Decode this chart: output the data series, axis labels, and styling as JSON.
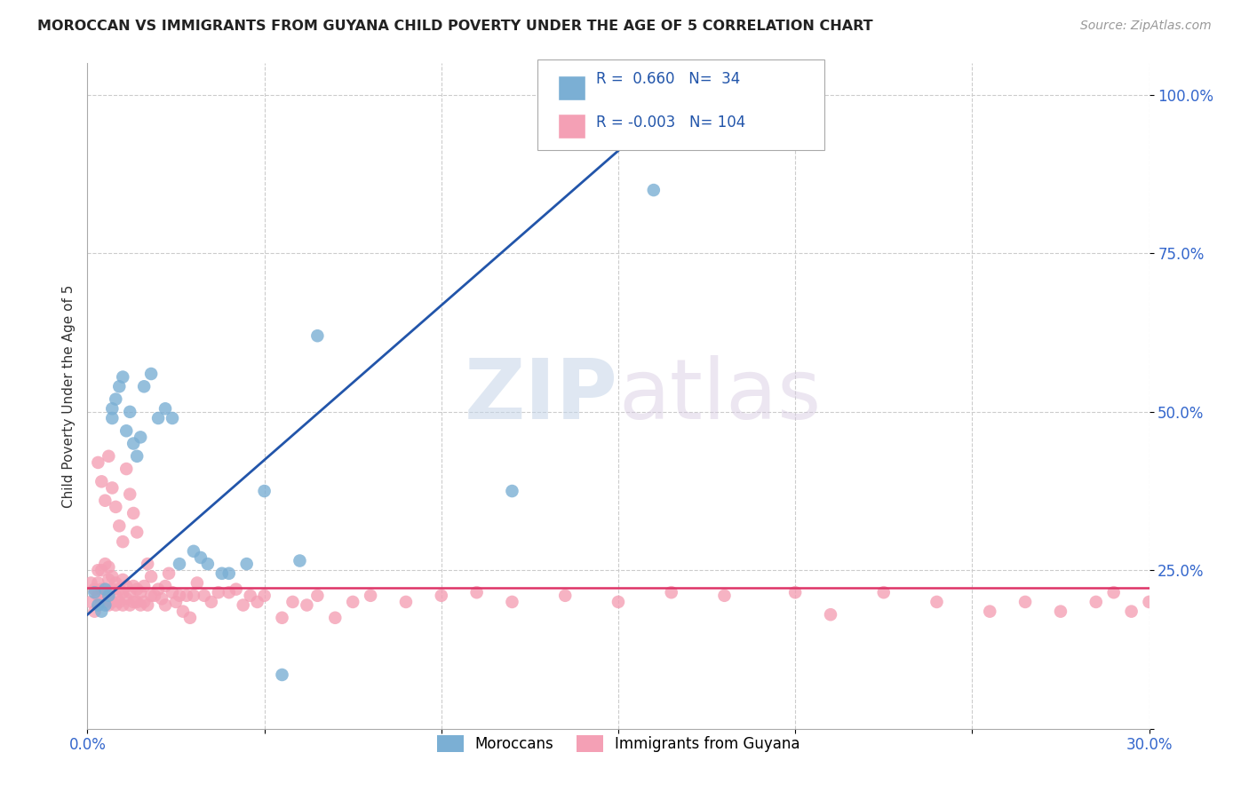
{
  "title": "MOROCCAN VS IMMIGRANTS FROM GUYANA CHILD POVERTY UNDER THE AGE OF 5 CORRELATION CHART",
  "source": "Source: ZipAtlas.com",
  "ylabel": "Child Poverty Under the Age of 5",
  "xlim": [
    0.0,
    0.3
  ],
  "ylim": [
    0.0,
    1.05
  ],
  "xticks": [
    0.0,
    0.05,
    0.1,
    0.15,
    0.2,
    0.25,
    0.3
  ],
  "xtick_labels": [
    "0.0%",
    "",
    "",
    "",
    "",
    "",
    "30.0%"
  ],
  "yticks": [
    0.0,
    0.25,
    0.5,
    0.75,
    1.0
  ],
  "ytick_labels": [
    "",
    "25.0%",
    "50.0%",
    "75.0%",
    "100.0%"
  ],
  "R_moroccan": 0.66,
  "N_moroccan": 34,
  "R_guyana": -0.003,
  "N_guyana": 104,
  "moroccan_color": "#7bafd4",
  "guyana_color": "#f4a0b5",
  "trend_moroccan_color": "#2255aa",
  "trend_guyana_color": "#dd3366",
  "watermark_zip": "ZIP",
  "watermark_atlas": "atlas",
  "legend_label_moroccan": "Moroccans",
  "legend_label_guyana": "Immigrants from Guyana",
  "moroccan_x": [
    0.002,
    0.003,
    0.004,
    0.005,
    0.005,
    0.006,
    0.007,
    0.007,
    0.008,
    0.009,
    0.01,
    0.011,
    0.012,
    0.013,
    0.014,
    0.015,
    0.016,
    0.018,
    0.02,
    0.022,
    0.024,
    0.026,
    0.03,
    0.032,
    0.034,
    0.038,
    0.04,
    0.045,
    0.05,
    0.055,
    0.06,
    0.065,
    0.12,
    0.16
  ],
  "moroccan_y": [
    0.215,
    0.195,
    0.185,
    0.22,
    0.195,
    0.21,
    0.49,
    0.505,
    0.52,
    0.54,
    0.555,
    0.47,
    0.5,
    0.45,
    0.43,
    0.46,
    0.54,
    0.56,
    0.49,
    0.505,
    0.49,
    0.26,
    0.28,
    0.27,
    0.26,
    0.245,
    0.245,
    0.26,
    0.375,
    0.085,
    0.265,
    0.62,
    0.375,
    0.85
  ],
  "guyana_x": [
    0.001,
    0.001,
    0.002,
    0.002,
    0.003,
    0.003,
    0.003,
    0.004,
    0.004,
    0.004,
    0.005,
    0.005,
    0.005,
    0.006,
    0.006,
    0.006,
    0.006,
    0.007,
    0.007,
    0.007,
    0.008,
    0.008,
    0.008,
    0.009,
    0.009,
    0.01,
    0.01,
    0.01,
    0.011,
    0.011,
    0.012,
    0.012,
    0.013,
    0.013,
    0.014,
    0.014,
    0.015,
    0.015,
    0.016,
    0.016,
    0.017,
    0.017,
    0.018,
    0.018,
    0.019,
    0.02,
    0.021,
    0.022,
    0.022,
    0.023,
    0.024,
    0.025,
    0.026,
    0.027,
    0.028,
    0.029,
    0.03,
    0.031,
    0.033,
    0.035,
    0.037,
    0.04,
    0.042,
    0.044,
    0.046,
    0.048,
    0.05,
    0.055,
    0.058,
    0.062,
    0.065,
    0.07,
    0.075,
    0.08,
    0.09,
    0.1,
    0.11,
    0.12,
    0.135,
    0.15,
    0.165,
    0.18,
    0.2,
    0.21,
    0.225,
    0.24,
    0.255,
    0.265,
    0.275,
    0.285,
    0.29,
    0.295,
    0.3,
    0.003,
    0.004,
    0.005,
    0.006,
    0.007,
    0.008,
    0.009,
    0.01,
    0.011,
    0.012,
    0.013,
    0.014
  ],
  "guyana_y": [
    0.23,
    0.2,
    0.22,
    0.185,
    0.21,
    0.23,
    0.25,
    0.2,
    0.22,
    0.25,
    0.2,
    0.215,
    0.26,
    0.195,
    0.215,
    0.235,
    0.255,
    0.2,
    0.22,
    0.24,
    0.195,
    0.21,
    0.23,
    0.2,
    0.22,
    0.195,
    0.215,
    0.235,
    0.205,
    0.225,
    0.195,
    0.215,
    0.2,
    0.225,
    0.2,
    0.22,
    0.195,
    0.215,
    0.2,
    0.225,
    0.195,
    0.26,
    0.21,
    0.24,
    0.21,
    0.22,
    0.205,
    0.195,
    0.225,
    0.245,
    0.215,
    0.2,
    0.21,
    0.185,
    0.21,
    0.175,
    0.21,
    0.23,
    0.21,
    0.2,
    0.215,
    0.215,
    0.22,
    0.195,
    0.21,
    0.2,
    0.21,
    0.175,
    0.2,
    0.195,
    0.21,
    0.175,
    0.2,
    0.21,
    0.2,
    0.21,
    0.215,
    0.2,
    0.21,
    0.2,
    0.215,
    0.21,
    0.215,
    0.18,
    0.215,
    0.2,
    0.185,
    0.2,
    0.185,
    0.2,
    0.215,
    0.185,
    0.2,
    0.42,
    0.39,
    0.36,
    0.43,
    0.38,
    0.35,
    0.32,
    0.295,
    0.41,
    0.37,
    0.34,
    0.31
  ],
  "trend_moroccan_x0": 0.0,
  "trend_moroccan_y0": 0.18,
  "trend_moroccan_x1": 0.168,
  "trend_moroccan_y1": 1.0,
  "trend_guyana_x0": 0.0,
  "trend_guyana_y0": 0.222,
  "trend_guyana_x1": 0.3,
  "trend_guyana_y1": 0.222
}
